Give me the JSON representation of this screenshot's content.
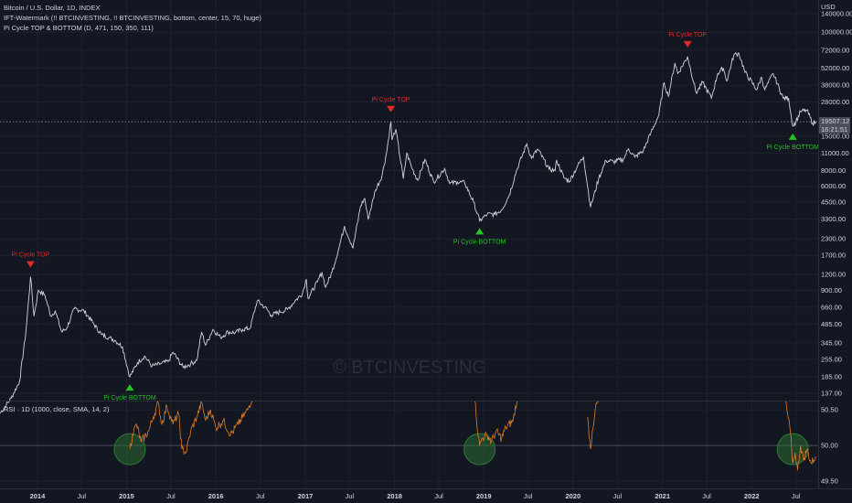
{
  "legend": {
    "main": "Bitcoin / U.S. Dollar, 1D, INDEX",
    "ind1": "IFT-Watermark (!! BTCINVESTING, !! BTCINVESTING, bottom, center, 15, 70, huge)",
    "ind2": "Pi Cycle TOP & BOTTOM (D, 471, 150, 350, 111)",
    "rsi": "RSI · 1D (1000, close, SMA, 14, 2)"
  },
  "currency": "USD",
  "watermark": "© BTCINVESTING",
  "price_label": {
    "price": "19507.12",
    "time": "16:21:51"
  },
  "colors": {
    "background": "#131722",
    "price_line": "#d1d4dc",
    "rsi_line": "#e07b24",
    "top_marker": "#e02b2b",
    "bottom_marker": "#22c51f",
    "highlight": "#2e7d32"
  },
  "chart_data": {
    "type": "line",
    "scale": "log",
    "ylim": [
      120,
      180000
    ],
    "x_range": [
      "2013-08-01",
      "2022-09-30"
    ],
    "y_ticks": [
      "140000.00",
      "100000.00",
      "72000.00",
      "52000.00",
      "38000.00",
      "28000.00",
      "15000.00",
      "11000.00",
      "8000.00",
      "6000.00",
      "4500.00",
      "3300.00",
      "2300.00",
      "1700.00",
      "1200.00",
      "900.00",
      "660.00",
      "485.00",
      "345.00",
      "255.00",
      "185.00",
      "137.00"
    ],
    "x_ticks": [
      {
        "label": "2014",
        "date": "2014-01-01",
        "bold": true
      },
      {
        "label": "Jul",
        "date": "2014-07-01",
        "bold": false
      },
      {
        "label": "2015",
        "date": "2015-01-01",
        "bold": true
      },
      {
        "label": "Jul",
        "date": "2015-07-01",
        "bold": false
      },
      {
        "label": "2016",
        "date": "2016-01-01",
        "bold": true
      },
      {
        "label": "Jul",
        "date": "2016-07-01",
        "bold": false
      },
      {
        "label": "2017",
        "date": "2017-01-01",
        "bold": true
      },
      {
        "label": "Jul",
        "date": "2017-07-01",
        "bold": false
      },
      {
        "label": "2018",
        "date": "2018-01-01",
        "bold": true
      },
      {
        "label": "Jul",
        "date": "2018-07-01",
        "bold": false
      },
      {
        "label": "2019",
        "date": "2019-01-01",
        "bold": true
      },
      {
        "label": "Jul",
        "date": "2019-07-01",
        "bold": false
      },
      {
        "label": "2020",
        "date": "2020-01-01",
        "bold": true
      },
      {
        "label": "Jul",
        "date": "2020-07-01",
        "bold": false
      },
      {
        "label": "2021",
        "date": "2021-01-01",
        "bold": true
      },
      {
        "label": "Jul",
        "date": "2021-07-01",
        "bold": false
      },
      {
        "label": "2022",
        "date": "2022-01-01",
        "bold": true
      },
      {
        "label": "Jul",
        "date": "2022-07-01",
        "bold": false
      }
    ],
    "current_price": 19507.12,
    "series": [
      {
        "points": [
          [
            "2013-08-01",
            95
          ],
          [
            "2013-09-15",
            125
          ],
          [
            "2013-10-20",
            170
          ],
          [
            "2013-11-15",
            420
          ],
          [
            "2013-12-04",
            1150
          ],
          [
            "2013-12-18",
            560
          ],
          [
            "2014-01-05",
            900
          ],
          [
            "2014-02-01",
            820
          ],
          [
            "2014-02-25",
            560
          ],
          [
            "2014-03-15",
            620
          ],
          [
            "2014-04-10",
            420
          ],
          [
            "2014-05-01",
            450
          ],
          [
            "2014-06-01",
            640
          ],
          [
            "2014-07-10",
            620
          ],
          [
            "2014-08-15",
            500
          ],
          [
            "2014-09-20",
            400
          ],
          [
            "2014-10-20",
            380
          ],
          [
            "2014-11-15",
            360
          ],
          [
            "2014-12-15",
            320
          ],
          [
            "2015-01-14",
            185
          ],
          [
            "2015-02-15",
            240
          ],
          [
            "2015-03-15",
            270
          ],
          [
            "2015-04-15",
            225
          ],
          [
            "2015-05-20",
            235
          ],
          [
            "2015-06-20",
            245
          ],
          [
            "2015-07-10",
            290
          ],
          [
            "2015-08-20",
            220
          ],
          [
            "2015-09-20",
            235
          ],
          [
            "2015-10-15",
            250
          ],
          [
            "2015-11-04",
            420
          ],
          [
            "2015-11-20",
            330
          ],
          [
            "2015-12-20",
            440
          ],
          [
            "2016-01-20",
            380
          ],
          [
            "2016-02-20",
            420
          ],
          [
            "2016-03-20",
            415
          ],
          [
            "2016-04-20",
            440
          ],
          [
            "2016-05-20",
            450
          ],
          [
            "2016-06-18",
            740
          ],
          [
            "2016-07-20",
            660
          ],
          [
            "2016-08-15",
            570
          ],
          [
            "2016-09-20",
            605
          ],
          [
            "2016-10-20",
            635
          ],
          [
            "2016-11-20",
            740
          ],
          [
            "2016-12-20",
            850
          ],
          [
            "2017-01-05",
            1100
          ],
          [
            "2017-01-12",
            780
          ],
          [
            "2017-02-20",
            1050
          ],
          [
            "2017-03-10",
            1250
          ],
          [
            "2017-03-25",
            950
          ],
          [
            "2017-04-20",
            1250
          ],
          [
            "2017-05-20",
            2000
          ],
          [
            "2017-06-10",
            2900
          ],
          [
            "2017-07-15",
            1950
          ],
          [
            "2017-08-15",
            4200
          ],
          [
            "2017-09-01",
            4800
          ],
          [
            "2017-09-15",
            3300
          ],
          [
            "2017-10-15",
            5600
          ],
          [
            "2017-11-10",
            7200
          ],
          [
            "2017-11-29",
            11000
          ],
          [
            "2017-12-17",
            19600
          ],
          [
            "2017-12-22",
            14000
          ],
          [
            "2018-01-06",
            17000
          ],
          [
            "2018-02-06",
            6900
          ],
          [
            "2018-02-20",
            11000
          ],
          [
            "2018-03-15",
            8200
          ],
          [
            "2018-04-06",
            6700
          ],
          [
            "2018-05-05",
            9800
          ],
          [
            "2018-06-10",
            6500
          ],
          [
            "2018-07-25",
            8300
          ],
          [
            "2018-08-15",
            6300
          ],
          [
            "2018-09-15",
            6500
          ],
          [
            "2018-10-15",
            6400
          ],
          [
            "2018-11-20",
            4500
          ],
          [
            "2018-12-15",
            3200
          ],
          [
            "2019-01-15",
            3600
          ],
          [
            "2019-02-15",
            3600
          ],
          [
            "2019-03-15",
            3900
          ],
          [
            "2019-04-15",
            5100
          ],
          [
            "2019-05-15",
            8000
          ],
          [
            "2019-06-26",
            13000
          ],
          [
            "2019-07-15",
            10000
          ],
          [
            "2019-08-10",
            11800
          ],
          [
            "2019-09-25",
            8200
          ],
          [
            "2019-10-20",
            8000
          ],
          [
            "2019-10-26",
            9700
          ],
          [
            "2019-11-25",
            7000
          ],
          [
            "2019-12-18",
            6600
          ],
          [
            "2020-01-20",
            8700
          ],
          [
            "2020-02-13",
            10300
          ],
          [
            "2020-03-13",
            4100
          ],
          [
            "2020-04-15",
            6900
          ],
          [
            "2020-05-15",
            9600
          ],
          [
            "2020-06-15",
            9400
          ],
          [
            "2020-07-25",
            9800
          ],
          [
            "2020-08-15",
            11900
          ],
          [
            "2020-09-10",
            10200
          ],
          [
            "2020-10-15",
            11500
          ],
          [
            "2020-11-15",
            16000
          ],
          [
            "2020-12-17",
            22000
          ],
          [
            "2021-01-08",
            40000
          ],
          [
            "2021-01-25",
            31000
          ],
          [
            "2021-02-21",
            57000
          ],
          [
            "2021-03-05",
            47000
          ],
          [
            "2021-04-14",
            64000
          ],
          [
            "2021-05-19",
            33000
          ],
          [
            "2021-06-15",
            40000
          ],
          [
            "2021-07-20",
            30000
          ],
          [
            "2021-08-15",
            47000
          ],
          [
            "2021-09-07",
            52000
          ],
          [
            "2021-09-21",
            41000
          ],
          [
            "2021-10-20",
            66000
          ],
          [
            "2021-11-10",
            68000
          ],
          [
            "2021-12-05",
            48000
          ],
          [
            "2022-01-22",
            35000
          ],
          [
            "2022-02-10",
            44000
          ],
          [
            "2022-02-24",
            35000
          ],
          [
            "2022-03-30",
            47000
          ],
          [
            "2022-05-10",
            30000
          ],
          [
            "2022-06-01",
            30000
          ],
          [
            "2022-06-18",
            18000
          ],
          [
            "2022-07-01",
            19500
          ],
          [
            "2022-07-20",
            23500
          ],
          [
            "2022-08-15",
            24000
          ],
          [
            "2022-09-07",
            19000
          ],
          [
            "2022-09-20",
            19500
          ]
        ]
      }
    ],
    "signals": [
      {
        "type": "top",
        "label": "Pi Cycle TOP",
        "date": "2013-12-04",
        "value": 1150
      },
      {
        "type": "bottom",
        "label": "Pi Cycle BOTTOM",
        "date": "2015-01-14",
        "value": 185
      },
      {
        "type": "top",
        "label": "Pi Cycle TOP",
        "date": "2017-12-17",
        "value": 19600
      },
      {
        "type": "bottom",
        "label": "Pi Cycle BOTTOM",
        "date": "2018-12-15",
        "value": 3200
      },
      {
        "type": "top",
        "label": "Pi Cycle TOP",
        "date": "2021-04-14",
        "value": 64000
      },
      {
        "type": "bottom",
        "label": "Pi Cycle BOTTOM",
        "date": "2022-06-18",
        "value": 18000
      }
    ],
    "rsi_panel": {
      "y_ticks": [
        "50.50",
        "50.00",
        "49.50"
      ],
      "ylim": [
        49.4,
        50.63
      ],
      "segments": [
        [
          [
            "2015-01-14",
            49.95
          ],
          [
            "2015-01-25",
            50.15
          ],
          [
            "2015-02-10",
            50.3
          ],
          [
            "2015-03-01",
            50.05
          ],
          [
            "2015-04-01",
            50.2
          ],
          [
            "2015-04-20",
            50.4
          ],
          [
            "2015-05-10",
            50.6
          ],
          [
            "2015-05-25",
            50.3
          ],
          [
            "2015-06-15",
            50.55
          ],
          [
            "2015-07-10",
            50.3
          ],
          [
            "2015-08-01",
            50.45
          ],
          [
            "2015-08-15",
            49.95
          ],
          [
            "2015-09-01",
            49.9
          ],
          [
            "2015-09-20",
            50.2
          ],
          [
            "2015-10-15",
            50.4
          ],
          [
            "2015-11-04",
            50.6
          ],
          [
            "2015-11-20",
            50.35
          ],
          [
            "2015-12-10",
            50.5
          ],
          [
            "2016-01-01",
            50.25
          ],
          [
            "2016-02-01",
            50.35
          ],
          [
            "2016-03-01",
            50.15
          ],
          [
            "2016-04-01",
            50.3
          ],
          [
            "2016-05-10",
            50.5
          ],
          [
            "2016-06-01",
            50.7
          ]
        ],
        [
          [
            "2018-11-25",
            50.7
          ],
          [
            "2018-12-01",
            50.4
          ],
          [
            "2018-12-15",
            50.0
          ],
          [
            "2018-12-25",
            50.1
          ],
          [
            "2019-01-15",
            50.15
          ],
          [
            "2019-02-01",
            50.05
          ],
          [
            "2019-02-20",
            50.2
          ],
          [
            "2019-03-15",
            50.1
          ],
          [
            "2019-04-01",
            50.25
          ],
          [
            "2019-05-01",
            50.35
          ],
          [
            "2019-05-20",
            50.7
          ]
        ],
        [
          [
            "2020-03-01",
            50.4
          ],
          [
            "2020-03-13",
            49.95
          ],
          [
            "2020-03-20",
            50.2
          ],
          [
            "2020-04-01",
            50.5
          ],
          [
            "2020-04-20",
            50.7
          ]
        ],
        [
          [
            "2022-05-15",
            50.7
          ],
          [
            "2022-05-25",
            50.5
          ],
          [
            "2022-06-08",
            50.2
          ],
          [
            "2022-06-18",
            49.75
          ],
          [
            "2022-06-28",
            49.9
          ],
          [
            "2022-07-08",
            49.65
          ],
          [
            "2022-07-20",
            50.0
          ],
          [
            "2022-08-01",
            49.8
          ],
          [
            "2022-08-15",
            49.95
          ],
          [
            "2022-09-01",
            49.75
          ],
          [
            "2022-09-20",
            49.85
          ]
        ]
      ],
      "highlights": [
        "2015-01-14",
        "2018-12-15",
        "2022-06-18"
      ]
    }
  }
}
